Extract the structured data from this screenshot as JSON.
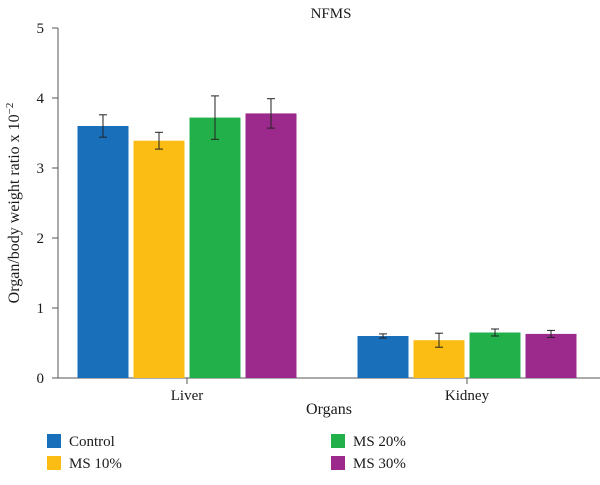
{
  "chart_data": {
    "type": "bar",
    "title": "NFMS",
    "xlabel": "Organs",
    "ylabel": "Organ/body weight ratio x 10",
    "ylabel_exponent": "−2",
    "categories": [
      "Liver",
      "Kidney"
    ],
    "ylim": [
      0,
      5
    ],
    "yticks": [
      "0",
      "1",
      "2",
      "3",
      "4",
      "5"
    ],
    "grid": false,
    "legend_position": "bottom",
    "series": [
      {
        "name": "Control",
        "color": "#1a6fbb",
        "values": [
          3.6,
          0.6
        ],
        "errors": [
          0.16,
          0.03
        ]
      },
      {
        "name": "MS 10%",
        "color": "#fbbd13",
        "values": [
          3.39,
          0.54
        ],
        "errors": [
          0.12,
          0.1
        ]
      },
      {
        "name": "MS 20%",
        "color": "#22b04b",
        "values": [
          3.72,
          0.65
        ],
        "errors": [
          0.31,
          0.05
        ]
      },
      {
        "name": "MS 30%",
        "color": "#9c2a8d",
        "values": [
          3.78,
          0.63
        ],
        "errors": [
          0.21,
          0.05
        ]
      }
    ]
  }
}
